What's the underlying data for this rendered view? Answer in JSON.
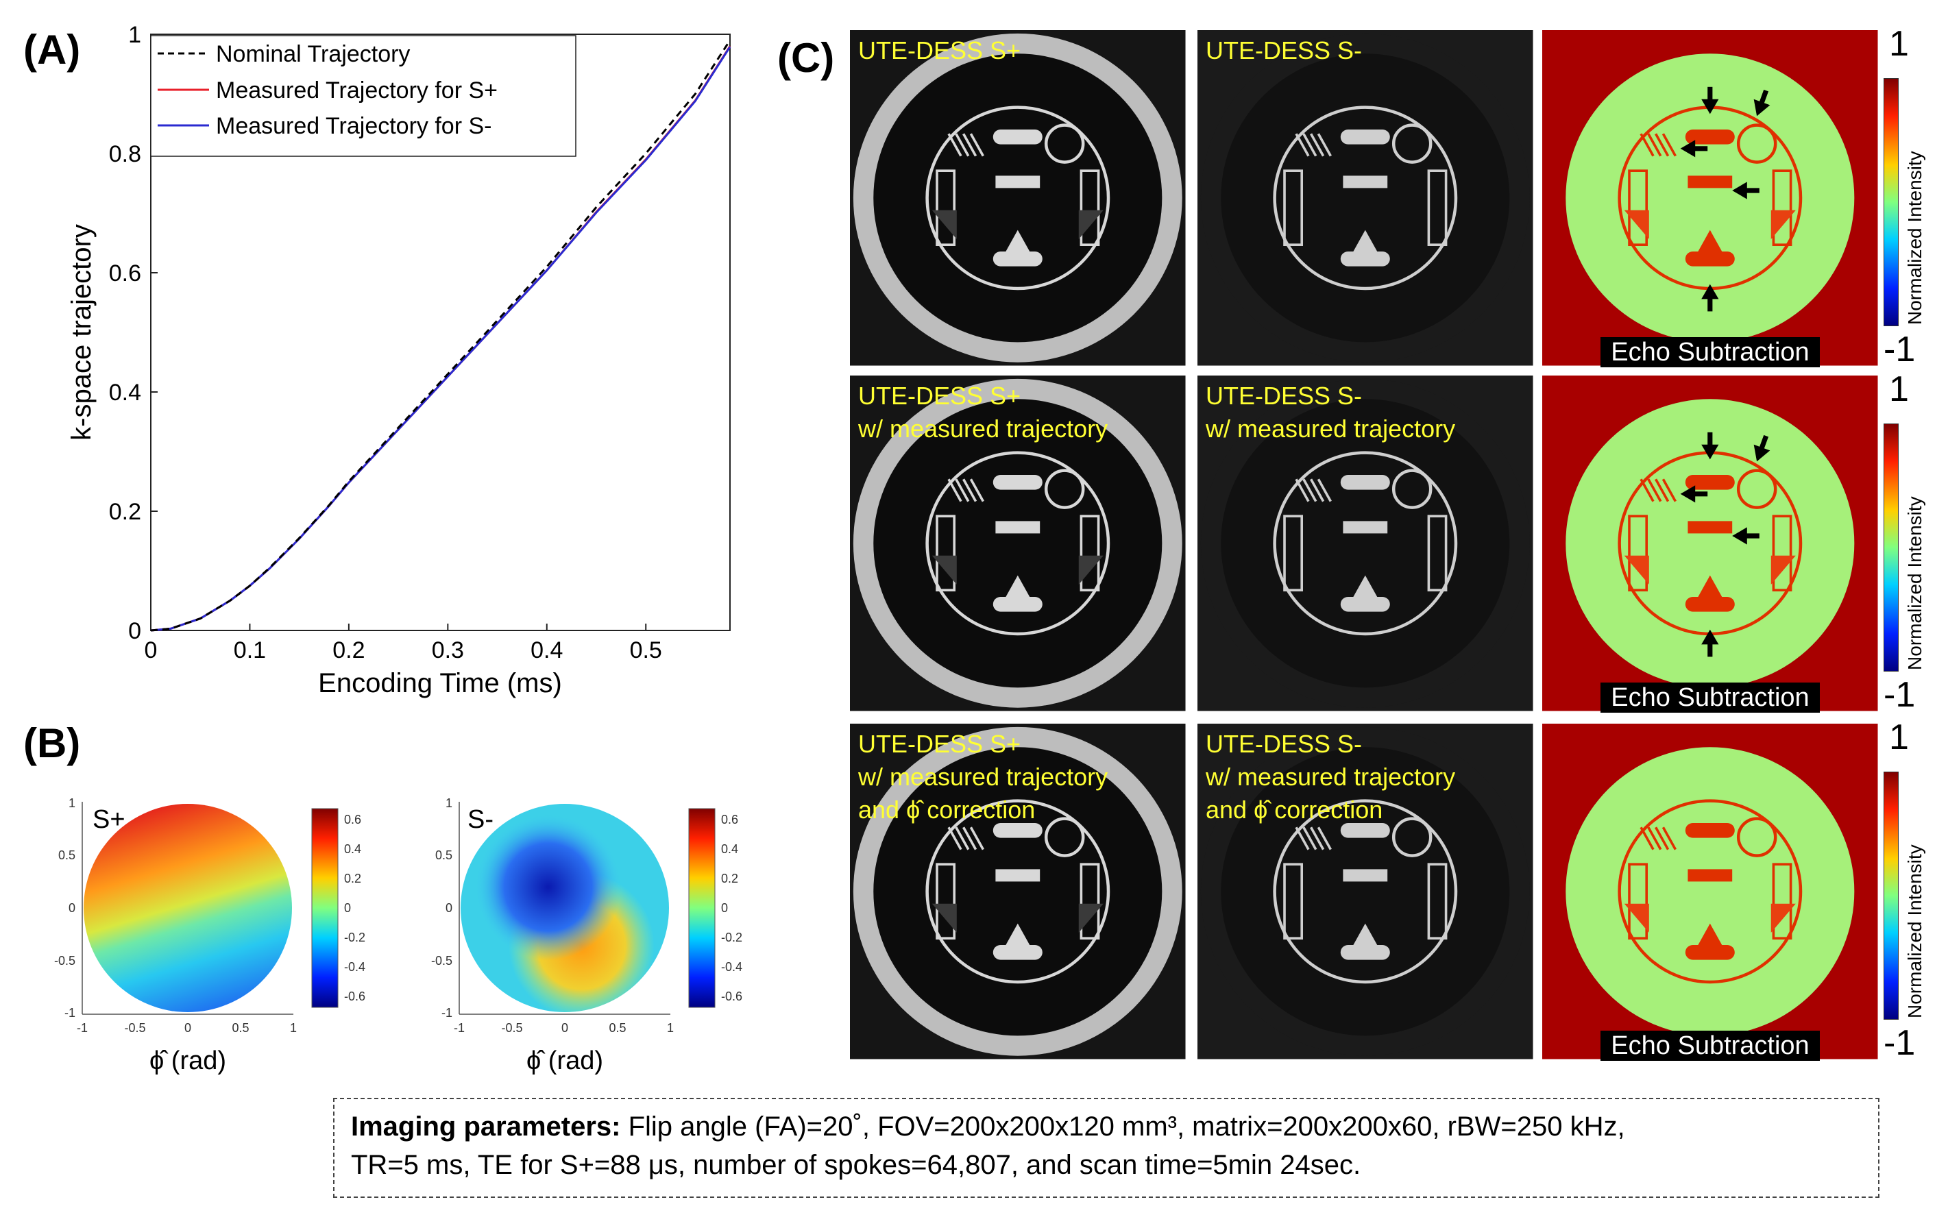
{
  "panels": {
    "A": "(A)",
    "B": "(B)",
    "C": "(C)"
  },
  "panel_a": {
    "chart_data": {
      "type": "line",
      "xlabel": "Encoding Time (ms)",
      "ylabel": "k-space trajectory",
      "xlim": [
        0,
        0.585
      ],
      "ylim": [
        0,
        1
      ],
      "xticks": [
        "0",
        "0.1",
        "0.2",
        "0.3",
        "0.4",
        "0.5"
      ],
      "yticks": [
        "0",
        "0.2",
        "0.4",
        "0.6",
        "0.8",
        "1"
      ],
      "legend_position": "top-right",
      "series": [
        {
          "name": "Nominal Trajectory",
          "color": "#000000",
          "style": "dashed",
          "x": [
            0,
            0.02,
            0.05,
            0.08,
            0.1,
            0.12,
            0.15,
            0.18,
            0.2,
            0.25,
            0.3,
            0.35,
            0.4,
            0.45,
            0.5,
            0.55,
            0.585
          ],
          "y": [
            0,
            0.003,
            0.02,
            0.05,
            0.075,
            0.105,
            0.155,
            0.21,
            0.25,
            0.34,
            0.43,
            0.52,
            0.61,
            0.71,
            0.8,
            0.9,
            0.99
          ]
        },
        {
          "name": "Measured Trajectory for S+",
          "color": "#e8202a",
          "style": "solid",
          "x": [
            0,
            0.02,
            0.05,
            0.08,
            0.1,
            0.12,
            0.15,
            0.18,
            0.2,
            0.25,
            0.3,
            0.35,
            0.4,
            0.45,
            0.5,
            0.55,
            0.585
          ],
          "y": [
            0,
            0.003,
            0.02,
            0.05,
            0.075,
            0.104,
            0.154,
            0.209,
            0.248,
            0.337,
            0.426,
            0.515,
            0.604,
            0.702,
            0.79,
            0.889,
            0.98
          ]
        },
        {
          "name": "Measured Trajectory for S-",
          "color": "#2a2ad0",
          "style": "solid",
          "x": [
            0,
            0.02,
            0.05,
            0.08,
            0.1,
            0.12,
            0.15,
            0.18,
            0.2,
            0.25,
            0.3,
            0.35,
            0.4,
            0.45,
            0.5,
            0.55,
            0.585
          ],
          "y": [
            0,
            0.003,
            0.02,
            0.05,
            0.075,
            0.104,
            0.154,
            0.209,
            0.248,
            0.337,
            0.426,
            0.515,
            0.604,
            0.701,
            0.789,
            0.888,
            0.979
          ]
        }
      ]
    }
  },
  "panel_b": {
    "plots": [
      {
        "label": "S+",
        "xlabel": "ϕ̂ (rad)",
        "xticks": [
          "-1",
          "-0.5",
          "0",
          "0.5",
          "1"
        ],
        "yticks": [
          "1",
          "0.5",
          "0",
          "-0.5",
          "-1"
        ],
        "colorbar_ticks": [
          "0.6",
          "0.4",
          "0.2",
          "0",
          "-0.2",
          "-0.4",
          "-0.6"
        ]
      },
      {
        "label": "S-",
        "xlabel": "ϕ̂ (rad)",
        "xticks": [
          "-1",
          "-0.5",
          "0",
          "0.5",
          "1"
        ],
        "yticks": [
          "1",
          "0.5",
          "0",
          "-0.5",
          "-1"
        ],
        "colorbar_ticks": [
          "0.6",
          "0.4",
          "0.2",
          "0",
          "-0.2",
          "-0.4",
          "-0.6"
        ]
      }
    ]
  },
  "panel_c": {
    "rows": [
      {
        "splus": [
          "UTE-DESS S+"
        ],
        "sminus": [
          "UTE-DESS S-"
        ],
        "diff": "Echo Subtraction",
        "arrows": true
      },
      {
        "splus": [
          "UTE-DESS S+",
          "w/ measured trajectory"
        ],
        "sminus": [
          "UTE-DESS S-",
          "w/ measured trajectory"
        ],
        "diff": "Echo Subtraction",
        "arrows": true
      },
      {
        "splus": [
          "UTE-DESS S+",
          "w/ measured trajectory",
          "and ϕ̂ correction"
        ],
        "sminus": [
          "UTE-DESS S-",
          "w/ measured trajectory",
          "and ϕ̂ correction"
        ],
        "diff": "Echo Subtraction",
        "arrows": false
      }
    ],
    "colorbar": {
      "max": "1",
      "min": "-1",
      "label": "Normalized Intensity"
    }
  },
  "caption": {
    "bold": "Imaging parameters:",
    "line1": " Flip angle (FA)=20˚, FOV=200x200x120 mm³, matrix=200x200x60, rBW=250 kHz,",
    "line2": "TR=5 ms, TE for S+=88 μs, number of spokes=64,807, and scan time=5min 24sec."
  }
}
